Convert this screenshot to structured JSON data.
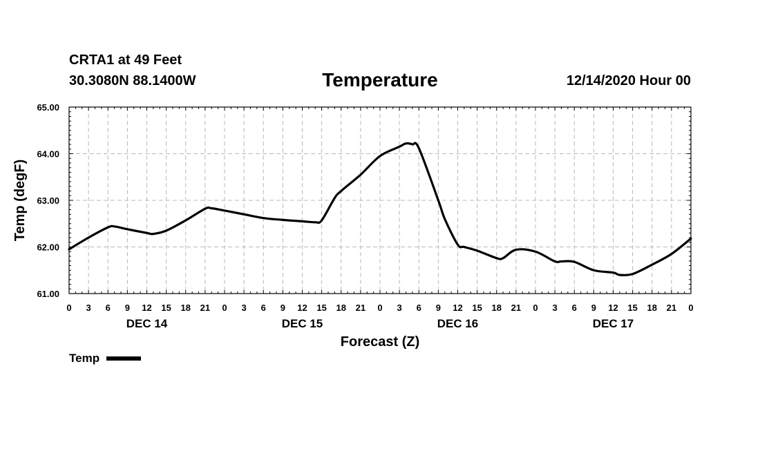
{
  "header": {
    "station": "CRTA1 at 49 Feet",
    "coords": "30.3080N 88.1400W",
    "title": "Temperature",
    "date": "12/14/2020 Hour 00"
  },
  "legend": {
    "label": "Temp",
    "color": "#000000"
  },
  "chart_data": {
    "type": "line",
    "title": "Temperature",
    "xlabel": "Forecast (Z)",
    "ylabel": "Temp (degF)",
    "ylim": [
      61.0,
      65.0
    ],
    "yticks": [
      "61.00",
      "62.00",
      "63.00",
      "64.00",
      "65.00"
    ],
    "xlim_hours": [
      0,
      96
    ],
    "xtick_labels": [
      "0",
      "3",
      "6",
      "9",
      "12",
      "15",
      "18",
      "21",
      "0",
      "3",
      "6",
      "9",
      "12",
      "15",
      "18",
      "21",
      "0",
      "3",
      "6",
      "9",
      "12",
      "15",
      "18",
      "21",
      "0",
      "3",
      "6",
      "9",
      "12",
      "15",
      "18",
      "21",
      "0"
    ],
    "day_labels": [
      {
        "label": "DEC 14",
        "hour": 12
      },
      {
        "label": "DEC 15",
        "hour": 36
      },
      {
        "label": "DEC 16",
        "hour": 60
      },
      {
        "label": "DEC 17",
        "hour": 84
      }
    ],
    "grid": true,
    "series": [
      {
        "name": "Temp",
        "color": "#000000",
        "x": [
          0,
          3,
          6,
          7,
          9,
          12,
          13,
          15,
          18,
          21,
          22,
          24,
          27,
          30,
          33,
          36,
          38,
          39,
          41,
          42,
          45,
          48,
          51,
          52,
          53,
          54,
          57,
          58,
          60,
          61,
          63,
          66,
          67,
          69,
          72,
          75,
          76,
          78,
          81,
          84,
          85,
          87,
          90,
          93,
          96
        ],
        "values": [
          61.95,
          62.2,
          62.42,
          62.44,
          62.38,
          62.3,
          62.28,
          62.35,
          62.57,
          62.82,
          62.83,
          62.78,
          62.7,
          62.62,
          62.58,
          62.55,
          62.53,
          62.57,
          63.05,
          63.2,
          63.55,
          63.95,
          64.15,
          64.22,
          64.2,
          64.12,
          63.0,
          62.6,
          62.05,
          62.0,
          61.92,
          61.76,
          61.76,
          61.94,
          61.9,
          61.69,
          61.69,
          61.68,
          61.5,
          61.45,
          61.4,
          61.42,
          61.62,
          61.85,
          62.18
        ]
      }
    ]
  }
}
